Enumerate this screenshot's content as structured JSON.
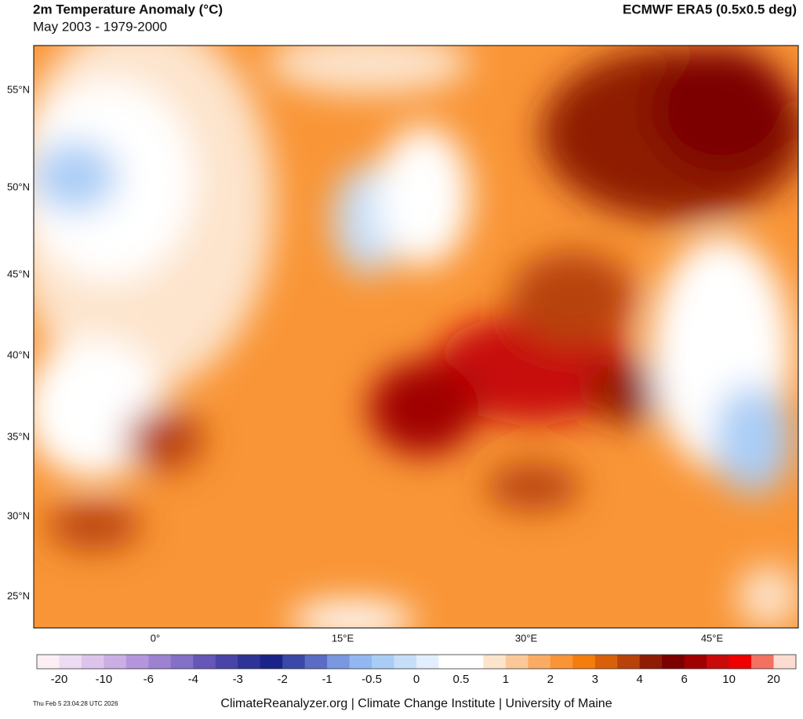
{
  "header": {
    "title": "2m Temperature Anomaly (°C)",
    "subtitle": "May 2003 - 1979-2000",
    "source": "ECMWF ERA5 (0.5x0.5 deg)"
  },
  "map": {
    "lat_labels": [
      "55°N",
      "50°N",
      "45°N",
      "40°N",
      "35°N",
      "30°N",
      "25°N"
    ],
    "lon_labels": [
      "0°",
      "15°E",
      "30°E",
      "45°E"
    ]
  },
  "colorbar": {
    "labels": [
      -20,
      -10,
      -6,
      -4,
      -3,
      -2,
      -1,
      -0.5,
      0,
      0.5,
      1,
      2,
      3,
      4,
      6,
      10,
      20
    ],
    "colors": [
      "#fbeff5",
      "#ecdcf2",
      "#dcc4ec",
      "#caaee4",
      "#b596dc",
      "#9d82d2",
      "#8470c8",
      "#6656b8",
      "#4a44a8",
      "#2e3396",
      "#1a2388",
      "#3a48a8",
      "#5a6cc4",
      "#7a98e0",
      "#92b8f2",
      "#aacdf6",
      "#c6def8",
      "#e2eefb",
      "#ffffff",
      "#ffffff",
      "#fde4cc",
      "#fcc897",
      "#fbab62",
      "#f99536",
      "#f47d0e",
      "#d8600a",
      "#b8420a",
      "#8f1d04",
      "#7c0000",
      "#a00000",
      "#c80a0a",
      "#ee0000",
      "#f47060",
      "#fcdcd0"
    ]
  },
  "footer": {
    "timestamp": "Thu Feb  5 23:04:28 UTC 2026",
    "credit": "ClimateReanalyzer.org | Climate Change Institute | University of Maine"
  }
}
